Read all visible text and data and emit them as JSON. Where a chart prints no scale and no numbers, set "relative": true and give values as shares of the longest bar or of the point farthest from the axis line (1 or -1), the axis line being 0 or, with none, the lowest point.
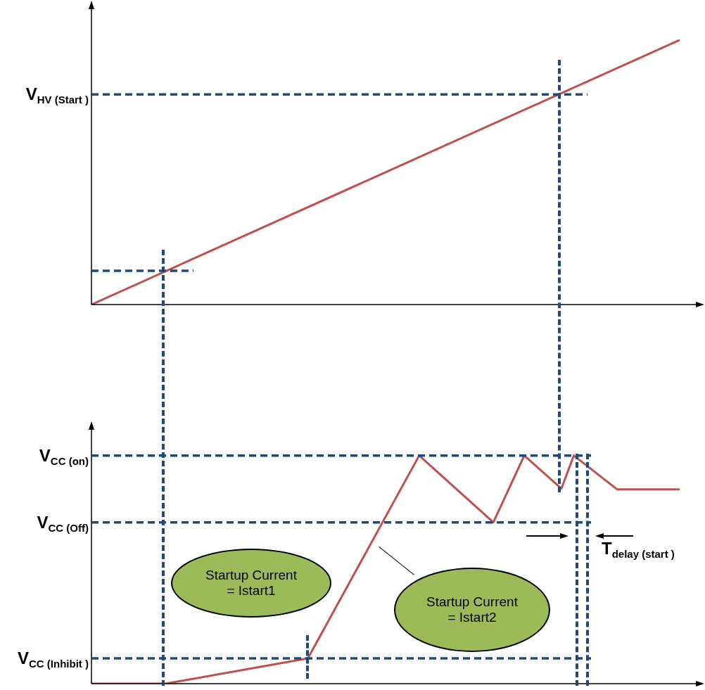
{
  "chart_data": [
    {
      "type": "line",
      "relative": true,
      "marker": "none",
      "line_style": "solid",
      "categories": [
        null,
        null,
        null,
        null,
        null,
        null,
        null,
        null,
        null,
        null,
        null,
        null,
        null,
        null,
        null,
        null,
        null,
        null,
        null,
        null,
        null,
        null,
        null,
        null,
        null,
        null,
        null,
        null,
        null,
        null,
        null,
        null,
        null,
        null,
        null,
        null,
        null,
        null,
        null,
        null,
        null,
        null,
        null,
        null,
        null,
        null,
        null,
        null,
        null,
        null,
        null,
        null,
        null,
        null,
        null,
        null,
        null,
        null,
        null,
        null,
        null,
        null,
        null,
        null,
        null,
        null,
        null,
        null,
        null,
        null,
        null,
        null,
        null,
        null,
        null,
        null,
        null,
        null,
        null,
        null,
        null,
        null,
        null,
        null,
        null,
        null,
        null,
        null,
        null,
        null,
        null,
        null,
        null,
        null,
        null,
        null,
        null,
        null,
        null,
        null
      ],
      "series": [
        {
          "color": "#c0504d",
          "values": [
            0,
            null,
            null,
            null,
            null,
            null,
            null,
            null,
            null,
            null,
            null,
            null,
            null,
            null,
            null,
            null,
            null,
            null,
            null,
            null,
            null,
            null,
            null,
            null,
            null,
            null,
            null,
            null,
            null,
            null,
            null,
            null,
            null,
            null,
            null,
            null,
            null,
            null,
            null,
            null,
            null,
            null,
            null,
            null,
            null,
            null,
            null,
            null,
            null,
            null,
            null,
            null,
            null,
            null,
            null,
            null,
            null,
            null,
            null,
            null,
            null,
            null,
            null,
            null,
            null,
            null,
            null,
            null,
            null,
            null,
            null,
            null,
            null,
            null,
            null,
            null,
            null,
            null,
            null,
            null,
            null,
            null,
            null,
            null,
            null,
            null,
            null,
            null,
            null,
            null,
            null,
            null,
            null,
            null,
            null,
            1,
            null,
            null,
            null,
            null
          ]
        }
      ],
      "ref_lines": [
        {
          "axis": "y",
          "value": 0.795,
          "label": "V$_{HV (Start )}$",
          "color": "#1f497d",
          "line_style": "dashed"
        },
        {
          "axis": "y",
          "value": 0.128,
          "label": null,
          "color": "#1f497d",
          "line_style": "dashed"
        }
      ]
    },
    {
      "type": "line",
      "relative": true,
      "marker": "none",
      "line_style": "solid",
      "categories": [
        null,
        null,
        null,
        null,
        null,
        null,
        null,
        null,
        null,
        null,
        null,
        null,
        null,
        null,
        null,
        null,
        null,
        null,
        null,
        null,
        null,
        null,
        null,
        null,
        null,
        null,
        null,
        null,
        null,
        null,
        null,
        null,
        null,
        null,
        null,
        null,
        null,
        null,
        null,
        null,
        null,
        null,
        null,
        null,
        null,
        null,
        null,
        null,
        null,
        null,
        null,
        null,
        null,
        null,
        null,
        null,
        null,
        null,
        null,
        null,
        null,
        null,
        null,
        null,
        null,
        null,
        null,
        null,
        null,
        null,
        null,
        null,
        null,
        null,
        null,
        null,
        null,
        null,
        null,
        null,
        null,
        null,
        null,
        null,
        null,
        null,
        null,
        null,
        null,
        null,
        null,
        null,
        null,
        null,
        null,
        null,
        null,
        null,
        null,
        null
      ],
      "series": [
        {
          "color": "#c0504d",
          "values": [
            0,
            null,
            null,
            null,
            null,
            null,
            null,
            null,
            null,
            null,
            null,
            null,
            0,
            null,
            null,
            null,
            null,
            null,
            null,
            null,
            null,
            null,
            null,
            null,
            null,
            null,
            null,
            null,
            null,
            null,
            null,
            null,
            null,
            null,
            null,
            0.111,
            null,
            null,
            null,
            null,
            null,
            null,
            null,
            null,
            null,
            null,
            null,
            null,
            null,
            null,
            null,
            null,
            null,
            1,
            null,
            null,
            null,
            null,
            null,
            null,
            null,
            null,
            null,
            null,
            null,
            0.707,
            null,
            null,
            null,
            null,
            1,
            null,
            null,
            null,
            null,
            null,
            0.855,
            null,
            1,
            null,
            null,
            null,
            null,
            null,
            null,
            0.852,
            null,
            null,
            null,
            null,
            null,
            null,
            null,
            null,
            null,
            0.852,
            null,
            null,
            null,
            null
          ]
        }
      ],
      "ref_lines": [
        {
          "axis": "y",
          "value": 1,
          "label": "V$_{CC (on)}$",
          "color": "#1f497d",
          "line_style": "dashed"
        },
        {
          "axis": "y",
          "value": 0.707,
          "label": "V$_{CC (Off)}$",
          "color": "#1f497d",
          "line_style": "dashed"
        },
        {
          "axis": "y",
          "value": 0.111,
          "label": "V$_{CC (Inhibit )}$",
          "color": "#1f497d",
          "line_style": "dashed"
        }
      ],
      "annotations": [
        "Startup Current\n= Istart1",
        "Startup Current\n= Istart2",
        "T$_{delay (start )}$"
      ]
    }
  ]
}
